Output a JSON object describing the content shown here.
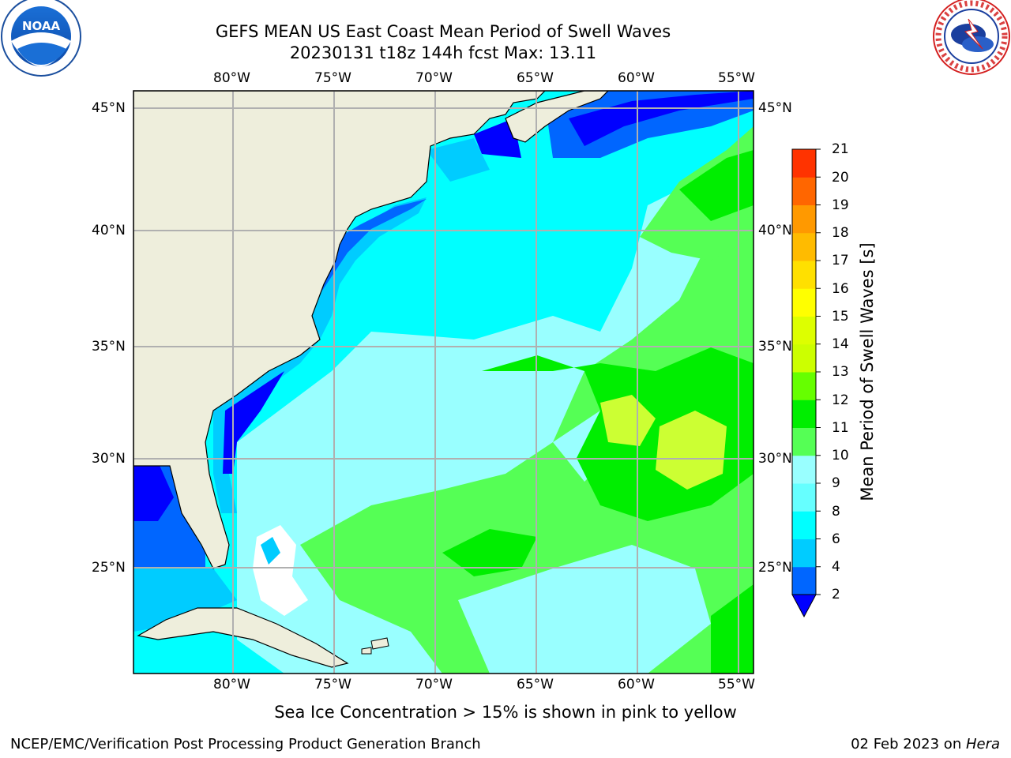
{
  "header": {
    "title_line1": "GEFS MEAN US East Coast Mean Period of Swell Waves",
    "title_line2": "20230131 t18z 144h fcst   Max: 13.11"
  },
  "logos": {
    "left": {
      "icon": "noaa-logo-icon",
      "text": "NOAA"
    },
    "right": {
      "icon": "national-weather-service-logo-icon",
      "text": "NATIONAL WEATHER SERVICE"
    }
  },
  "map": {
    "longitude_labels": [
      "80°W",
      "75°W",
      "70°W",
      "65°W",
      "60°W",
      "55°W"
    ],
    "latitude_labels": [
      "45°N",
      "40°N",
      "35°N",
      "30°N",
      "25°N"
    ],
    "lon_range": [
      -85,
      -54.2
    ],
    "lat_range": [
      20,
      46
    ],
    "colors": {
      "land": "#eeeedc",
      "grid": "#b0b0b0",
      "dark_blue": "#0000ff",
      "blue": "#0066ff",
      "deep_sky": "#00ccff",
      "cyan": "#00ffff",
      "light_cyan": "#99ffff",
      "green": "#55ff55",
      "bright_green": "#00ee00",
      "yellow_green": "#ccff33"
    }
  },
  "colorbar": {
    "label": "Mean Period of Swell Waves [s]",
    "ticks": [
      "2",
      "4",
      "6",
      "8",
      "9",
      "10",
      "11",
      "12",
      "13",
      "14",
      "15",
      "16",
      "17",
      "18",
      "19",
      "20",
      "21"
    ],
    "colors": [
      "#0066ff",
      "#00ccff",
      "#00ffff",
      "#66ffff",
      "#99ffff",
      "#55ff55",
      "#00ee00",
      "#66ff00",
      "#ccff00",
      "#ddff00",
      "#ffff00",
      "#ffe000",
      "#ffbb00",
      "#ff9900",
      "#ff6600",
      "#ff3300",
      "#ff0000"
    ],
    "extend_min_color": "#0000ff"
  },
  "note": "Sea Ice Concentration > 15% is shown in pink to yellow",
  "footer": {
    "left": "NCEP/EMC/Verification Post Processing Product Generation Branch",
    "date": "02 Feb 2023 on ",
    "machine": "Hera"
  }
}
